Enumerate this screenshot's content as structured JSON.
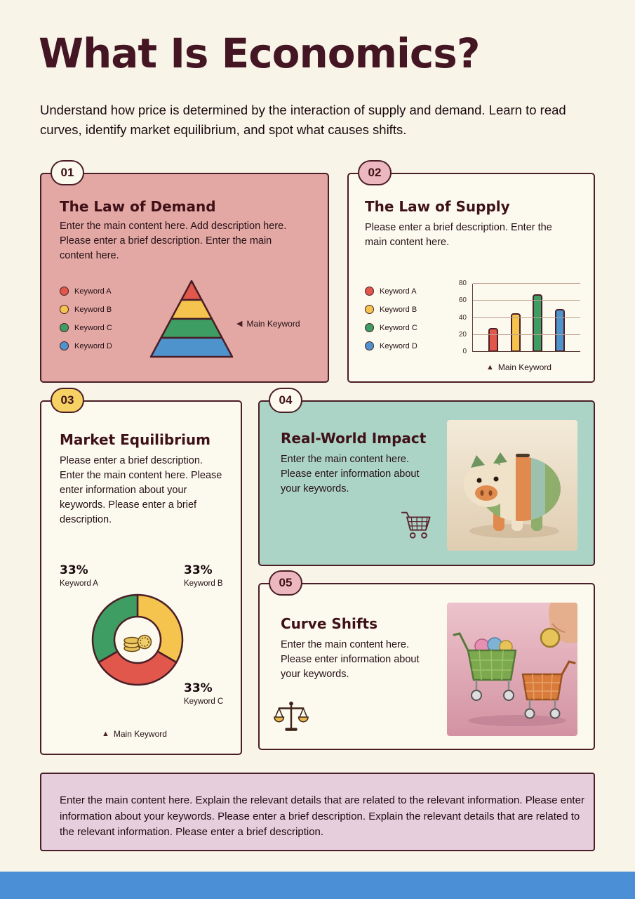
{
  "page": {
    "title": "What Is Economics?",
    "subtitle": "Understand how price is determined by the interaction of supply and demand. Learn to read curves, identify market equilibrium, and spot what causes shifts."
  },
  "palette": {
    "maroon": "#4A1E26",
    "red": "#E2574C",
    "yellow": "#F4C44E",
    "green": "#3E9D63",
    "blue": "#4E93CC",
    "pink_card": "#E3A8A4",
    "teal_card": "#ACD4C6",
    "cream_card": "#FCF9EE",
    "badge_pink": "#ECB7BE",
    "badge_yellow": "#F6D163",
    "footer_pink": "#E7CEDC",
    "bottom_bar_blue": "#4B90D6"
  },
  "markers": {
    "left_triangle": "◀",
    "up_triangle": "▲"
  },
  "cards": {
    "demand": {
      "number": "01",
      "title": "The Law of Demand",
      "description": "Enter the main content here. Add description here. Please enter a brief description. Enter the main content here.",
      "legend": [
        "Keyword A",
        "Keyword B",
        "Keyword C",
        "Keyword D"
      ],
      "main_keyword": "Main Keyword"
    },
    "supply": {
      "number": "02",
      "title": "The Law of Supply",
      "description": "Please enter a brief description. Enter the main content here.",
      "legend": [
        "Keyword A",
        "Keyword B",
        "Keyword C",
        "Keyword D"
      ],
      "main_keyword": "Main Keyword"
    },
    "equilibrium": {
      "number": "03",
      "title": "Market Equilibrium",
      "description": "Please enter a brief description. Enter the main content here. Please enter information about your keywords. Please enter a brief description.",
      "main_keyword": "Main Keyword"
    },
    "impact": {
      "number": "04",
      "title": "Real-World Impact",
      "description": "Enter the main content here. Please enter information about your keywords."
    },
    "shifts": {
      "number": "05",
      "title": "Curve Shifts",
      "description": "Enter the main content here. Please enter information about your keywords."
    }
  },
  "footer": {
    "text": "Enter the main content here. Explain the relevant details that are related to the relevant information. Please enter information about your keywords. Please enter a brief description. Explain the relevant details that are related to the relevant information. Please enter a brief description."
  },
  "chart_data": [
    {
      "type": "pyramid",
      "levels": [
        "Keyword A",
        "Keyword B",
        "Keyword C",
        "Keyword D"
      ],
      "colors": [
        "#E2574C",
        "#F4C44E",
        "#3E9D63",
        "#4E93CC"
      ],
      "annotation": "Main Keyword"
    },
    {
      "type": "bar",
      "categories": [
        "Keyword A",
        "Keyword B",
        "Keyword C",
        "Keyword D"
      ],
      "values": [
        28,
        45,
        68,
        50
      ],
      "colors": [
        "#E2574C",
        "#F4C44E",
        "#3E9D63",
        "#4E93CC"
      ],
      "ylim": [
        0,
        80
      ],
      "yticks": [
        0,
        20,
        40,
        60,
        80
      ],
      "grid": true,
      "annotation": "Main Keyword"
    },
    {
      "type": "donut",
      "segments": [
        {
          "label": "Keyword B",
          "pct": "33%",
          "value": 33,
          "color": "#F4C44E"
        },
        {
          "label": "Keyword C",
          "pct": "33%",
          "value": 33,
          "color": "#E2574C"
        },
        {
          "label": "Keyword A",
          "pct": "33%",
          "value": 33,
          "color": "#3E9D63"
        }
      ],
      "annotation": "Main Keyword"
    }
  ]
}
